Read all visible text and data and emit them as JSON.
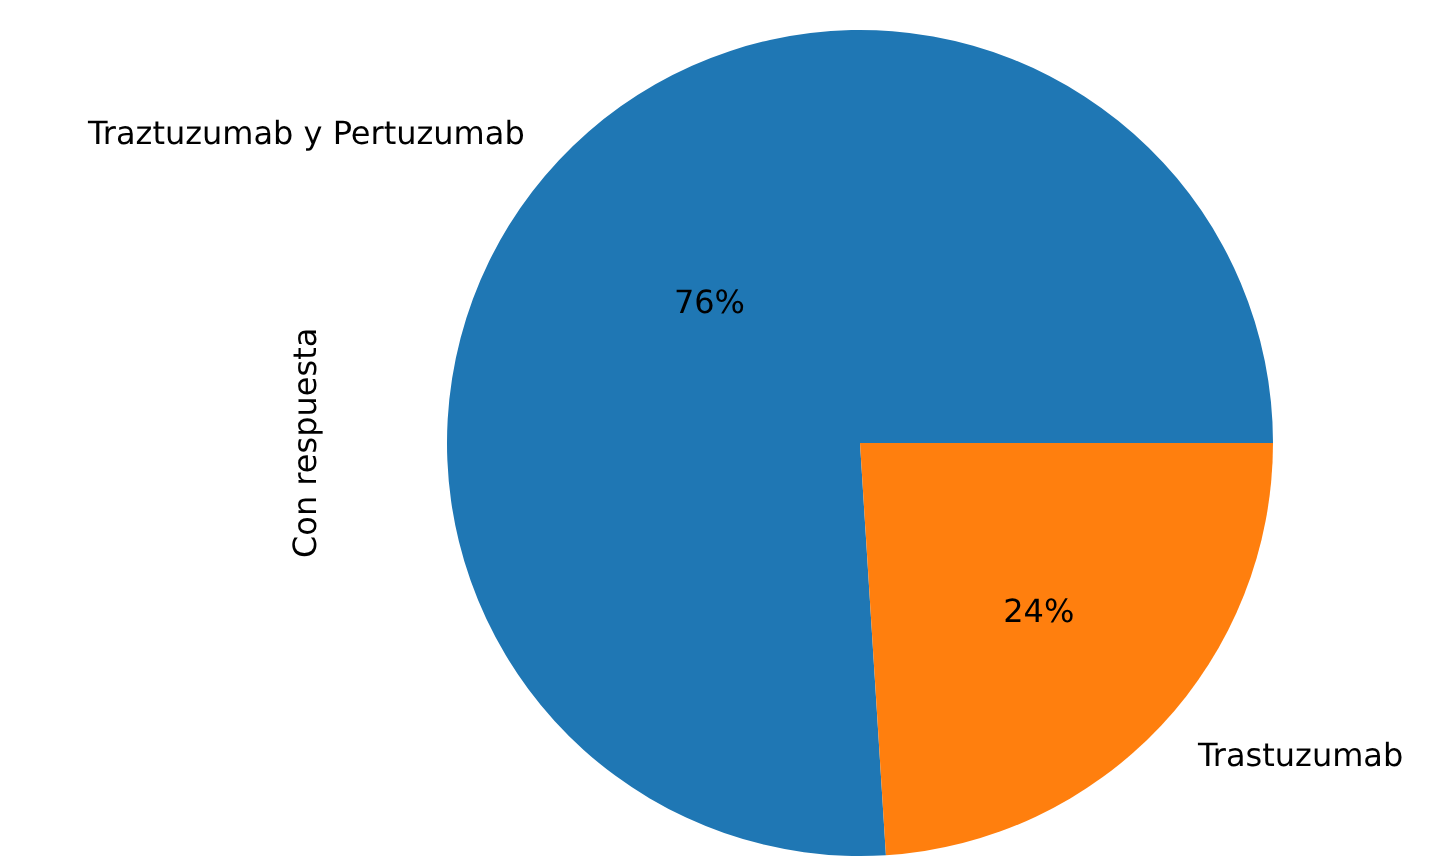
{
  "chart_data": {
    "type": "pie",
    "ylabel": "Con respuesta",
    "categories": [
      "Traztuzumab y Pertuzumab",
      "Trastuzumab"
    ],
    "values": [
      76,
      24
    ],
    "value_labels": [
      "76%",
      "24%"
    ],
    "colors": [
      "#1f77b4",
      "#ff7f0e"
    ],
    "data_labels": true,
    "legend": false
  }
}
